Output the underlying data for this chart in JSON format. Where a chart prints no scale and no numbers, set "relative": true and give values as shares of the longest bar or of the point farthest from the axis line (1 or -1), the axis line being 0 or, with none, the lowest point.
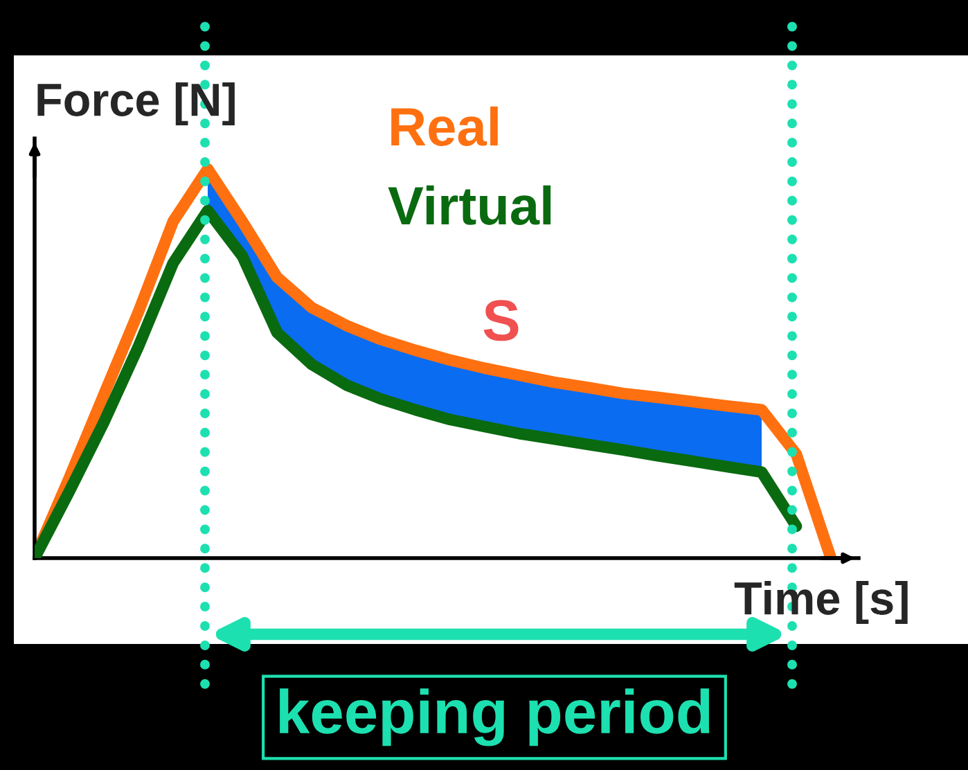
{
  "chart_data": {
    "type": "line",
    "relative": true,
    "xlabel": "Time [s]",
    "ylabel": "Force [N]",
    "categories": [
      null,
      null,
      null,
      null,
      null,
      null,
      null,
      null,
      null,
      null,
      null,
      null,
      null,
      null,
      null,
      null,
      null,
      null,
      null,
      null,
      null,
      null,
      null,
      null
    ],
    "series": [
      {
        "name": "Real",
        "color": "#ff7010",
        "values": [
          0,
          0.206,
          0.42,
          0.633,
          0.865,
          1.0,
          0.865,
          0.722,
          0.644,
          0.598,
          0.562,
          0.534,
          0.509,
          0.488,
          0.47,
          0.452,
          0.438,
          0.423,
          0.413,
          0.402,
          0.391,
          0.381,
          0.267,
          0
        ]
      },
      {
        "name": "Virtual",
        "color": "#0a6a10",
        "values": [
          0,
          0.171,
          0.349,
          0.544,
          0.758,
          0.893,
          0.776,
          0.58,
          0.498,
          0.445,
          0.409,
          0.381,
          0.356,
          0.338,
          0.32,
          0.306,
          0.292,
          0.278,
          0.263,
          0.249,
          0.235,
          0.221,
          0.082,
          null
        ]
      },
      {
        "color": "#0a6cf0",
        "values": [
          null,
          null,
          null,
          null,
          null,
          null,
          null,
          null,
          null,
          null,
          null,
          null,
          null,
          null,
          null,
          null,
          null,
          null,
          null,
          null,
          null,
          null,
          null,
          null
        ],
        "lower": [
          null,
          null,
          null,
          null,
          null,
          0.893,
          0.776,
          0.58,
          0.498,
          0.445,
          0.409,
          0.381,
          0.356,
          0.338,
          0.32,
          0.306,
          0.292,
          0.278,
          0.263,
          0.249,
          0.235,
          0.221,
          null,
          null
        ],
        "upper": [
          null,
          null,
          null,
          null,
          null,
          1.0,
          0.865,
          0.722,
          0.644,
          0.598,
          0.562,
          0.534,
          0.509,
          0.488,
          0.47,
          0.452,
          0.438,
          0.423,
          0.413,
          0.402,
          0.391,
          0.381,
          null,
          null
        ]
      }
    ],
    "annotations": [
      "S",
      "keeping period"
    ]
  }
}
